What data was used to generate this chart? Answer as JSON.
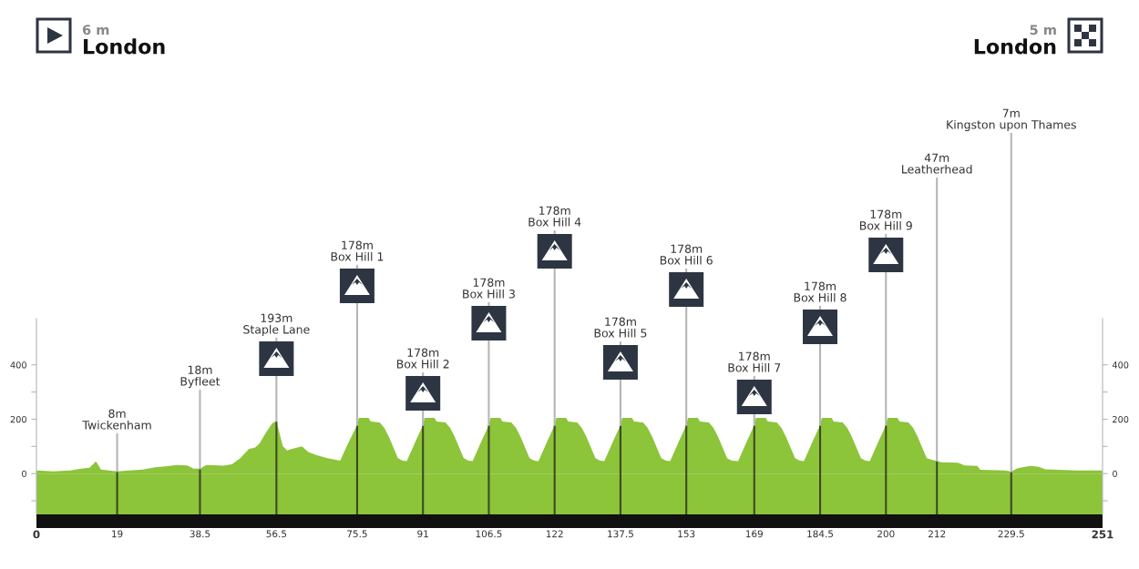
{
  "chart_data": {
    "type": "area",
    "color": "#8cc43a",
    "annotations": [
      "6 m",
      "London",
      "5 m",
      "London",
      {
        "text": "8m\nTwickenham",
        "x": 19,
        "y": 8
      },
      {
        "text": "18m\nByfleet",
        "x": 38.5,
        "y": 18
      },
      {
        "text": "193m\nStaple Lane",
        "x": 56.5,
        "y": 193
      },
      {
        "text": "178m\nBox Hill 1",
        "x": 75.5,
        "y": 178
      },
      {
        "text": "178m\nBox Hill 2",
        "x": 91,
        "y": 178
      },
      {
        "text": "178m\nBox Hill 3",
        "x": 106.5,
        "y": 178
      },
      {
        "text": "178m\nBox Hill 4",
        "x": 122,
        "y": 178
      },
      {
        "text": "178m\nBox Hill 5",
        "x": 137.5,
        "y": 178
      },
      {
        "text": "178m\nBox Hill 6",
        "x": 153,
        "y": 178
      },
      {
        "text": "178m\nBox Hill 7",
        "x": 169,
        "y": 178
      },
      {
        "text": "178m\nBox Hill 8",
        "x": 184.5,
        "y": 178
      },
      {
        "text": "178m\nBox Hill 9",
        "x": 200,
        "y": 178
      },
      {
        "text": "47m\nLeatherhead",
        "x": 212,
        "y": 47
      },
      {
        "text": "7m\nKingston upon Thames",
        "x": 229.5,
        "y": 7
      }
    ],
    "x": [
      0,
      4,
      8,
      10.5,
      12.5,
      14,
      15.2,
      17,
      19,
      25,
      28,
      30.5,
      33,
      35.5,
      37,
      38.5,
      40,
      43,
      44,
      46,
      48,
      50,
      51.5,
      52.5,
      54,
      55.5,
      56.5,
      58,
      59,
      60,
      62.5,
      64,
      66,
      68.5,
      71.5,
      73.5,
      75.5,
      75.9,
      78.2,
      78.7,
      80.8,
      81.9,
      83,
      85.1,
      86.2,
      87.2,
      89.4,
      91,
      91.4,
      93.7,
      94.2,
      96.3,
      97.4,
      98.5,
      100.6,
      101.7,
      102.7,
      104.9,
      106.5,
      106.9,
      109.2,
      109.7,
      111.8,
      112.9,
      114,
      116.1,
      117.2,
      118.2,
      120.4,
      122,
      122.4,
      124.7,
      125.2,
      127.3,
      128.4,
      129.5,
      131.6,
      132.7,
      133.7,
      135.9,
      137.5,
      137.9,
      140.2,
      140.7,
      142.8,
      143.9,
      145,
      147.1,
      148.2,
      149.2,
      151.4,
      153,
      153.4,
      155.7,
      156.2,
      158.3,
      159.4,
      160.5,
      162.6,
      163.7,
      165.2,
      167.4,
      169,
      169.4,
      171.7,
      172.2,
      174.3,
      175.4,
      176.5,
      178.6,
      179.7,
      180.7,
      182.9,
      184.5,
      184.9,
      187.2,
      187.7,
      189.8,
      190.9,
      192,
      194.1,
      195.2,
      196.2,
      198.4,
      200,
      200.4,
      202.7,
      203.2,
      205.3,
      206.4,
      207.5,
      209.6,
      211,
      212,
      213,
      217,
      218.5,
      221.5,
      222.2,
      228,
      229.5,
      231,
      234,
      236,
      237.5,
      245,
      251
    ],
    "values": [
      12,
      8,
      12,
      18,
      22,
      45,
      15,
      12,
      8,
      15,
      23,
      27,
      32,
      30,
      18,
      18,
      32,
      30,
      29,
      34,
      57,
      90,
      96,
      110,
      150,
      185,
      193,
      101,
      85,
      90,
      100,
      79,
      68,
      57,
      48,
      115,
      178,
      205,
      205,
      192,
      188,
      168,
      135,
      57,
      48,
      46,
      124,
      178,
      205,
      205,
      192,
      188,
      168,
      135,
      57,
      48,
      46,
      124,
      178,
      205,
      205,
      192,
      188,
      168,
      135,
      57,
      48,
      46,
      124,
      178,
      205,
      205,
      192,
      188,
      168,
      135,
      57,
      48,
      46,
      124,
      178,
      205,
      205,
      192,
      188,
      168,
      135,
      57,
      48,
      46,
      124,
      178,
      205,
      205,
      192,
      188,
      168,
      135,
      57,
      48,
      46,
      124,
      178,
      205,
      205,
      192,
      188,
      168,
      135,
      57,
      48,
      46,
      124,
      178,
      205,
      205,
      192,
      188,
      168,
      135,
      57,
      48,
      46,
      124,
      178,
      205,
      205,
      192,
      188,
      168,
      135,
      57,
      50,
      47,
      42,
      40,
      30,
      28,
      14,
      12,
      7,
      20,
      28,
      25,
      16,
      12,
      12
    ],
    "bands": [
      {
        "axis": "y",
        "from": -150,
        "to": 0,
        "color": "#8cc43a"
      }
    ],
    "ref_lines": [
      {
        "axis": "x",
        "value": 19,
        "color": "#3c4a22"
      },
      {
        "axis": "x",
        "value": 38.5,
        "color": "#3c4a22"
      },
      {
        "axis": "x",
        "value": 56.5,
        "color": "#3c4a22"
      },
      {
        "axis": "x",
        "value": 75.5,
        "color": "#3c4a22"
      },
      {
        "axis": "x",
        "value": 91,
        "color": "#3c4a22"
      },
      {
        "axis": "x",
        "value": 106.5,
        "color": "#3c4a22"
      },
      {
        "axis": "x",
        "value": 122,
        "color": "#3c4a22"
      },
      {
        "axis": "x",
        "value": 137.5,
        "color": "#3c4a22"
      },
      {
        "axis": "x",
        "value": 153,
        "color": "#3c4a22"
      },
      {
        "axis": "x",
        "value": 169,
        "color": "#3c4a22"
      },
      {
        "axis": "x",
        "value": 184.5,
        "color": "#3c4a22"
      },
      {
        "axis": "x",
        "value": 200,
        "color": "#3c4a22"
      },
      {
        "axis": "x",
        "value": 212,
        "color": "#3c4a22"
      },
      {
        "axis": "x",
        "value": 229.5,
        "color": "#3c4a22"
      }
    ],
    "xlim": [
      0,
      251
    ],
    "xticks": [
      0,
      19,
      38.5,
      56.5,
      75.5,
      91,
      106.5,
      122,
      137.5,
      153,
      169,
      184.5,
      200,
      212,
      229.5,
      251
    ],
    "ylim": [
      -150,
      570
    ],
    "yticks": [
      {
        "value": -100,
        "label": null
      },
      0,
      {
        "value": 100,
        "label": null
      },
      200,
      {
        "value": 300,
        "label": null
      },
      400
    ],
    "y2lim": [
      -150,
      570
    ],
    "y2ticks": [
      {
        "value": -100,
        "label": null
      },
      0,
      {
        "value": 100,
        "label": null
      },
      200,
      {
        "value": 300,
        "label": null
      },
      400
    ]
  }
}
